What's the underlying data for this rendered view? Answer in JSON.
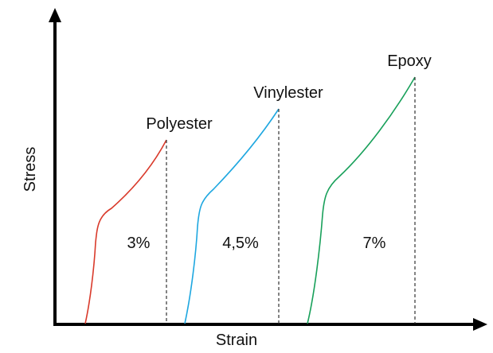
{
  "diagram": {
    "x_axis_label": "Strain",
    "y_axis_label": "Stress",
    "curves": [
      {
        "name": "Polyester",
        "strain_label": "3%",
        "color": "#d93a2b"
      },
      {
        "name": "Vinylester",
        "strain_label": "4,5%",
        "color": "#1ea7e0"
      },
      {
        "name": "Epoxy",
        "strain_label": "7%",
        "color": "#18a05a"
      }
    ]
  }
}
